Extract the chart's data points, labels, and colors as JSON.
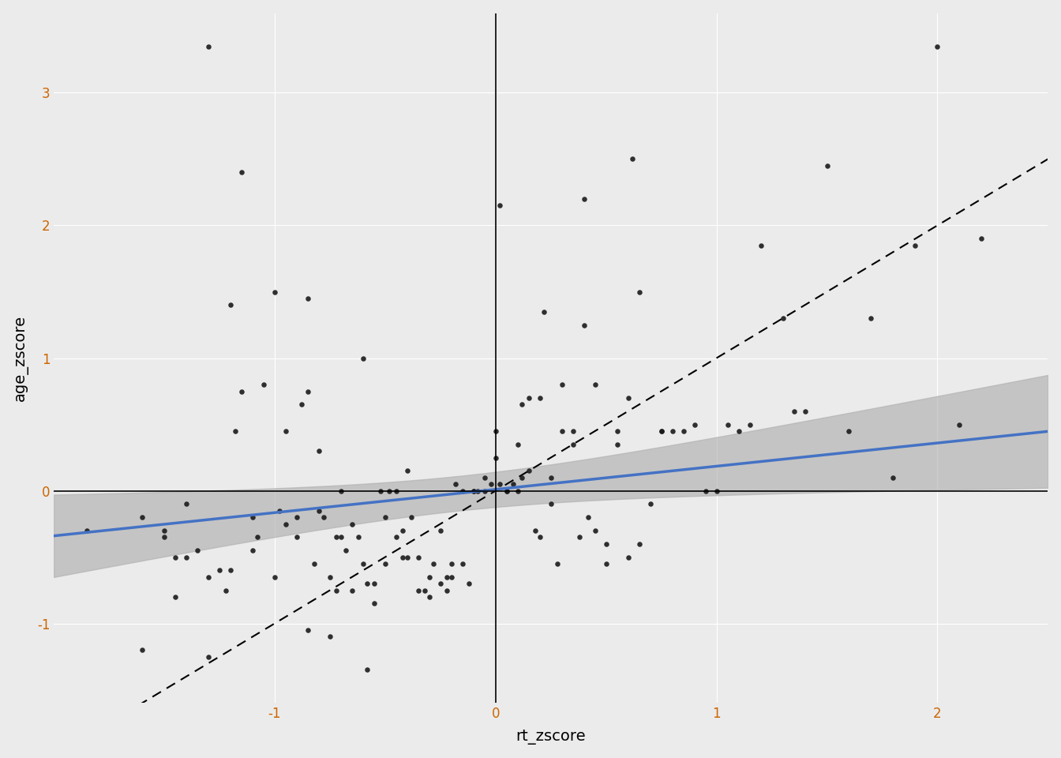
{
  "scatter_x": [
    -1.85,
    -1.3,
    -1.6,
    -1.45,
    -1.5,
    -1.45,
    -1.4,
    -1.15,
    -1.35,
    -1.3,
    -1.25,
    -1.22,
    -1.2,
    -1.18,
    -1.15,
    -1.1,
    -1.08,
    -1.05,
    -1.0,
    -0.98,
    -0.95,
    -0.85,
    -0.9,
    -0.88,
    -0.85,
    -0.82,
    -0.8,
    -0.78,
    -0.75,
    -0.72,
    -0.7,
    -0.68,
    -0.65,
    -0.62,
    -0.6,
    -0.58,
    -0.55,
    -0.52,
    -0.5,
    -0.48,
    -0.45,
    -0.42,
    -0.4,
    -0.38,
    -0.35,
    -0.32,
    -0.3,
    -0.28,
    -0.25,
    -0.22,
    -0.2,
    -0.18,
    -0.15,
    -0.12,
    -0.1,
    -0.08,
    -0.05,
    -0.02,
    0.0,
    0.02,
    0.05,
    0.08,
    0.1,
    0.12,
    0.15,
    0.18,
    0.2,
    0.25,
    0.28,
    0.3,
    0.35,
    0.38,
    0.4,
    0.45,
    0.5,
    0.55,
    0.6,
    0.65,
    0.7,
    0.75,
    0.8,
    0.85,
    0.9,
    0.95,
    1.0,
    1.05,
    1.1,
    1.15,
    1.2,
    1.3,
    1.35,
    1.4,
    1.5,
    1.6,
    1.7,
    1.8,
    1.9,
    2.0,
    2.1,
    2.2,
    -1.3,
    -1.1,
    -0.9,
    -0.7,
    -0.5,
    -0.3,
    -0.1,
    0.1,
    0.3,
    0.5,
    -1.5,
    -1.2,
    -0.8,
    -0.6,
    -0.4,
    -0.2,
    0.0,
    0.2,
    0.4,
    0.6,
    -1.6,
    -1.0,
    -0.75,
    -0.55,
    -0.35,
    -0.15,
    0.05,
    0.25,
    0.45,
    0.65,
    -1.4,
    -0.85,
    -0.65,
    -0.45,
    -0.25,
    -0.05,
    0.15,
    0.35,
    0.55,
    0.75,
    -0.95,
    -0.72,
    -0.58,
    -0.42,
    -0.22,
    0.02,
    0.12,
    0.22,
    0.42,
    0.62
  ],
  "scatter_y": [
    -0.3,
    -1.25,
    -0.2,
    -0.5,
    -0.35,
    -0.8,
    -0.5,
    0.75,
    -0.45,
    3.35,
    -0.6,
    -0.75,
    -0.6,
    0.45,
    2.4,
    -0.2,
    -0.35,
    0.8,
    1.5,
    -0.15,
    0.45,
    1.45,
    -0.2,
    0.65,
    0.75,
    -0.55,
    -0.15,
    -0.2,
    -1.1,
    -0.75,
    0.0,
    -0.45,
    -0.25,
    -0.35,
    -0.55,
    -0.7,
    -0.7,
    0.0,
    -0.2,
    0.0,
    0.0,
    -0.3,
    -0.5,
    -0.2,
    -0.75,
    -0.75,
    -0.8,
    -0.55,
    -0.7,
    -0.65,
    -0.55,
    0.05,
    -0.55,
    -0.7,
    0.0,
    0.0,
    0.1,
    0.05,
    0.45,
    0.05,
    0.0,
    0.05,
    0.0,
    0.1,
    0.7,
    -0.3,
    0.7,
    -0.1,
    -0.55,
    0.8,
    0.35,
    -0.35,
    2.2,
    0.8,
    -0.4,
    0.35,
    0.7,
    1.5,
    -0.1,
    0.45,
    0.45,
    0.45,
    0.5,
    0.0,
    0.0,
    0.5,
    0.45,
    0.5,
    1.85,
    1.3,
    0.6,
    0.6,
    2.45,
    0.45,
    1.3,
    0.1,
    1.85,
    3.35,
    0.5,
    1.9,
    -0.65,
    -0.45,
    -0.35,
    -0.35,
    -0.55,
    -0.65,
    0.0,
    0.35,
    0.45,
    -0.55,
    -0.3,
    1.4,
    0.3,
    1.0,
    0.15,
    -0.65,
    0.25,
    -0.35,
    1.25,
    -0.5,
    -1.2,
    -0.65,
    -0.65,
    -0.85,
    -0.5,
    0.0,
    0.0,
    0.1,
    -0.3,
    -0.4,
    -0.1,
    -1.05,
    -0.75,
    -0.35,
    -0.3,
    0.0,
    0.15,
    0.45,
    0.45,
    0.45,
    -0.25,
    -0.35,
    -1.35,
    -0.5,
    -0.75,
    2.15,
    0.65,
    1.35,
    -0.2,
    2.5
  ],
  "regression_slope": 0.175,
  "regression_intercept": 0.01,
  "xlim": [
    -2.0,
    2.5
  ],
  "ylim": [
    -1.6,
    3.6
  ],
  "xticks": [
    -1,
    0,
    1,
    2
  ],
  "yticks": [
    -1,
    0,
    1,
    2,
    3
  ],
  "xlabel": "rt_zscore",
  "ylabel": "age_zscore",
  "bg_color": "#EBEBEB",
  "grid_color": "#FFFFFF",
  "scatter_color": "#1a1a1a",
  "line_color": "#4472C4",
  "diag_color": "#000000",
  "ci_color": "#b0b0b0",
  "vline_color": "#000000",
  "hline_color": "#000000",
  "line_width": 2.5,
  "diag_linewidth": 1.5,
  "axis_label_fontsize": 14,
  "tick_fontsize": 12,
  "tick_color": "#CC6600",
  "point_size": 22
}
